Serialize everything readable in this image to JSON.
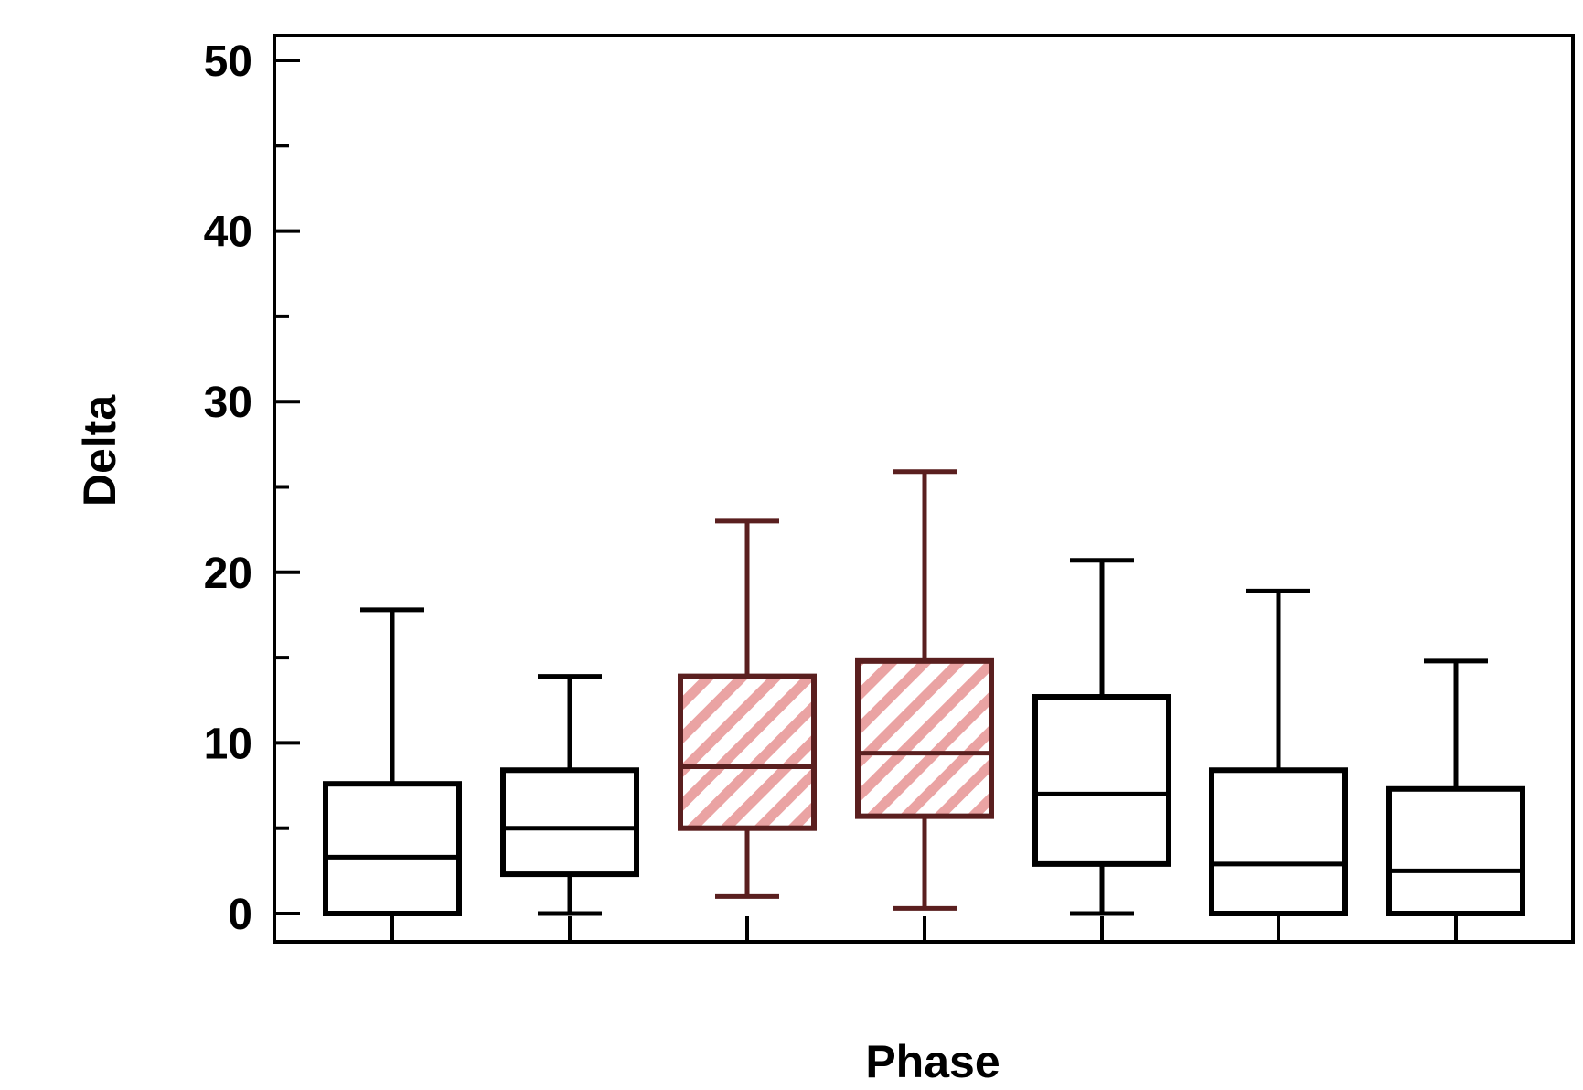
{
  "chart_data": {
    "type": "box",
    "title": "",
    "xlabel": "Phase",
    "ylabel": "Delta",
    "ylim": [
      0,
      50
    ],
    "yticks": [
      0,
      10,
      20,
      30,
      40,
      50
    ],
    "yticklabels": [
      "0",
      "10",
      "20",
      "30",
      "40",
      "50"
    ],
    "minor_ticks": [
      5,
      15,
      25,
      35,
      45
    ],
    "grid": false,
    "legend": "none",
    "categories": [
      "",
      "",
      "",
      "",
      "",
      "",
      ""
    ],
    "boxes": [
      {
        "whisker_low": 0,
        "q1": 0,
        "median": 3.3,
        "q3": 7.6,
        "whisker_high": 17.8,
        "highlight": false
      },
      {
        "whisker_low": 0,
        "q1": 2.3,
        "median": 5.0,
        "q3": 8.4,
        "whisker_high": 13.9,
        "highlight": false
      },
      {
        "whisker_low": 1.0,
        "q1": 5.0,
        "median": 8.6,
        "q3": 13.9,
        "whisker_high": 23.0,
        "highlight": true
      },
      {
        "whisker_low": 0.3,
        "q1": 5.7,
        "median": 9.4,
        "q3": 14.8,
        "whisker_high": 25.9,
        "highlight": true
      },
      {
        "whisker_low": 0,
        "q1": 2.9,
        "median": 7.0,
        "q3": 12.7,
        "whisker_high": 20.7,
        "highlight": false
      },
      {
        "whisker_low": 0,
        "q1": 0,
        "median": 2.9,
        "q3": 8.4,
        "whisker_high": 18.9,
        "highlight": false
      },
      {
        "whisker_low": 0,
        "q1": 0,
        "median": 2.5,
        "q3": 7.3,
        "whisker_high": 14.8,
        "highlight": false
      }
    ],
    "colors": {
      "normal_stroke": "#000000",
      "highlight_stroke": "#5a1f1f",
      "highlight_hatch": "#eaa3a3",
      "background": "#ffffff"
    }
  }
}
